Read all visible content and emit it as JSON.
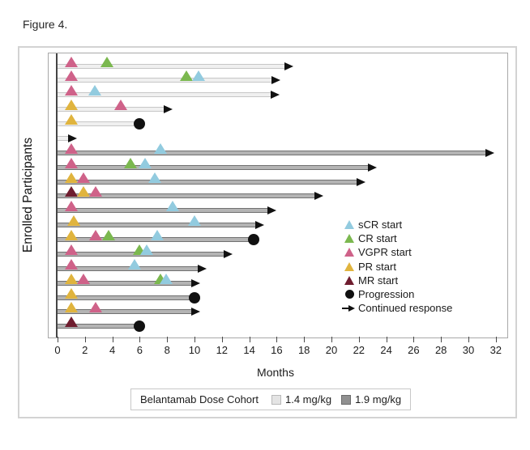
{
  "figure": {
    "title": "Figure 4."
  },
  "colors": {
    "sCR": "#92cbdf",
    "CR": "#7bb84f",
    "VGPR": "#cf6289",
    "PR": "#e0b43e",
    "MR": "#6f1d2f",
    "progression": "#111111",
    "continued": "#111111",
    "bar_light": "#f0f0f0",
    "bar_light_edge": "#c6c6c6",
    "bar_dark": "#b4b4b4",
    "bar_dark_edge": "#717171",
    "dose_light_swatch": "#e4e4e4",
    "dose_dark_swatch": "#909090"
  },
  "chart_data": {
    "type": "swimmer-bar",
    "title": "Figure 4.",
    "xlabel": "Months",
    "ylabel": "Enrolled Participants",
    "xlim": [
      0,
      32
    ],
    "xticks": [
      0,
      2,
      4,
      6,
      8,
      10,
      12,
      14,
      16,
      18,
      20,
      22,
      24,
      26,
      28,
      30,
      32
    ],
    "grid": false,
    "legend_position": "inside-right",
    "marker_legend": [
      {
        "label": "sCR start",
        "key": "sCR"
      },
      {
        "label": "CR start",
        "key": "CR"
      },
      {
        "label": "VGPR start",
        "key": "VGPR"
      },
      {
        "label": "PR start",
        "key": "PR"
      },
      {
        "label": "MR start",
        "key": "MR"
      },
      {
        "label": "Progression",
        "key": "progression"
      },
      {
        "label": "Continued response",
        "key": "continued"
      }
    ],
    "dose_legend": {
      "title": "Belantamab Dose Cohort",
      "items": [
        {
          "label": "1.4 mg/kg",
          "key": "light"
        },
        {
          "label": "1.9 mg/kg",
          "key": "dark"
        }
      ]
    },
    "participants": [
      {
        "cohort": "1.4 mg/kg",
        "end_month": 17.2,
        "end_type": "continued",
        "markers": [
          {
            "type": "VGPR",
            "month": 1.0
          },
          {
            "type": "CR",
            "month": 3.6
          }
        ]
      },
      {
        "cohort": "1.4 mg/kg",
        "end_month": 16.3,
        "end_type": "continued",
        "markers": [
          {
            "type": "VGPR",
            "month": 1.0
          },
          {
            "type": "CR",
            "month": 9.4
          },
          {
            "type": "sCR",
            "month": 10.3
          }
        ]
      },
      {
        "cohort": "1.4 mg/kg",
        "end_month": 16.2,
        "end_type": "continued",
        "markers": [
          {
            "type": "VGPR",
            "month": 1.0
          },
          {
            "type": "sCR",
            "month": 2.7
          }
        ]
      },
      {
        "cohort": "1.4 mg/kg",
        "end_month": 8.4,
        "end_type": "continued",
        "markers": [
          {
            "type": "PR",
            "month": 1.0
          },
          {
            "type": "VGPR",
            "month": 4.6
          }
        ]
      },
      {
        "cohort": "1.4 mg/kg",
        "end_month": 6.0,
        "end_type": "progression",
        "markers": [
          {
            "type": "PR",
            "month": 1.0
          }
        ]
      },
      {
        "cohort": "1.4 mg/kg",
        "end_month": 1.4,
        "end_type": "continued",
        "markers": []
      },
      {
        "cohort": "1.9 mg/kg",
        "end_month": 31.9,
        "end_type": "continued",
        "markers": [
          {
            "type": "VGPR",
            "month": 1.0
          },
          {
            "type": "sCR",
            "month": 7.5
          }
        ]
      },
      {
        "cohort": "1.9 mg/kg",
        "end_month": 23.3,
        "end_type": "continued",
        "markers": [
          {
            "type": "VGPR",
            "month": 1.0
          },
          {
            "type": "CR",
            "month": 5.3
          },
          {
            "type": "sCR",
            "month": 6.4
          }
        ]
      },
      {
        "cohort": "1.9 mg/kg",
        "end_month": 22.5,
        "end_type": "continued",
        "markers": [
          {
            "type": "PR",
            "month": 1.0
          },
          {
            "type": "VGPR",
            "month": 1.9
          },
          {
            "type": "sCR",
            "month": 7.1
          }
        ]
      },
      {
        "cohort": "1.9 mg/kg",
        "end_month": 19.4,
        "end_type": "continued",
        "markers": [
          {
            "type": "MR",
            "month": 1.0
          },
          {
            "type": "PR",
            "month": 1.9
          },
          {
            "type": "VGPR",
            "month": 2.8
          }
        ]
      },
      {
        "cohort": "1.9 mg/kg",
        "end_month": 16.0,
        "end_type": "continued",
        "markers": [
          {
            "type": "VGPR",
            "month": 1.0
          },
          {
            "type": "sCR",
            "month": 8.4
          }
        ]
      },
      {
        "cohort": "1.9 mg/kg",
        "end_month": 15.1,
        "end_type": "continued",
        "markers": [
          {
            "type": "PR",
            "month": 1.2
          },
          {
            "type": "sCR",
            "month": 10.0
          }
        ]
      },
      {
        "cohort": "1.9 mg/kg",
        "end_month": 14.3,
        "end_type": "progression",
        "markers": [
          {
            "type": "PR",
            "month": 1.0
          },
          {
            "type": "VGPR",
            "month": 2.8
          },
          {
            "type": "CR",
            "month": 3.7
          },
          {
            "type": "sCR",
            "month": 7.3
          }
        ]
      },
      {
        "cohort": "1.9 mg/kg",
        "end_month": 12.8,
        "end_type": "continued",
        "markers": [
          {
            "type": "VGPR",
            "month": 1.0
          },
          {
            "type": "CR",
            "month": 6.0
          },
          {
            "type": "sCR",
            "month": 6.5
          }
        ]
      },
      {
        "cohort": "1.9 mg/kg",
        "end_month": 10.9,
        "end_type": "continued",
        "markers": [
          {
            "type": "VGPR",
            "month": 1.0
          },
          {
            "type": "sCR",
            "month": 5.6
          }
        ]
      },
      {
        "cohort": "1.9 mg/kg",
        "end_month": 10.4,
        "end_type": "continued",
        "markers": [
          {
            "type": "PR",
            "month": 1.0
          },
          {
            "type": "VGPR",
            "month": 1.9
          },
          {
            "type": "CR",
            "month": 7.5
          },
          {
            "type": "sCR",
            "month": 7.9
          }
        ]
      },
      {
        "cohort": "1.9 mg/kg",
        "end_month": 10.0,
        "end_type": "progression",
        "markers": [
          {
            "type": "PR",
            "month": 1.0
          }
        ]
      },
      {
        "cohort": "1.9 mg/kg",
        "end_month": 10.4,
        "end_type": "continued",
        "markers": [
          {
            "type": "PR",
            "month": 1.0
          },
          {
            "type": "VGPR",
            "month": 2.8
          }
        ]
      },
      {
        "cohort": "1.9 mg/kg",
        "end_month": 6.0,
        "end_type": "progression",
        "markers": [
          {
            "type": "MR",
            "month": 1.0
          }
        ]
      }
    ]
  }
}
